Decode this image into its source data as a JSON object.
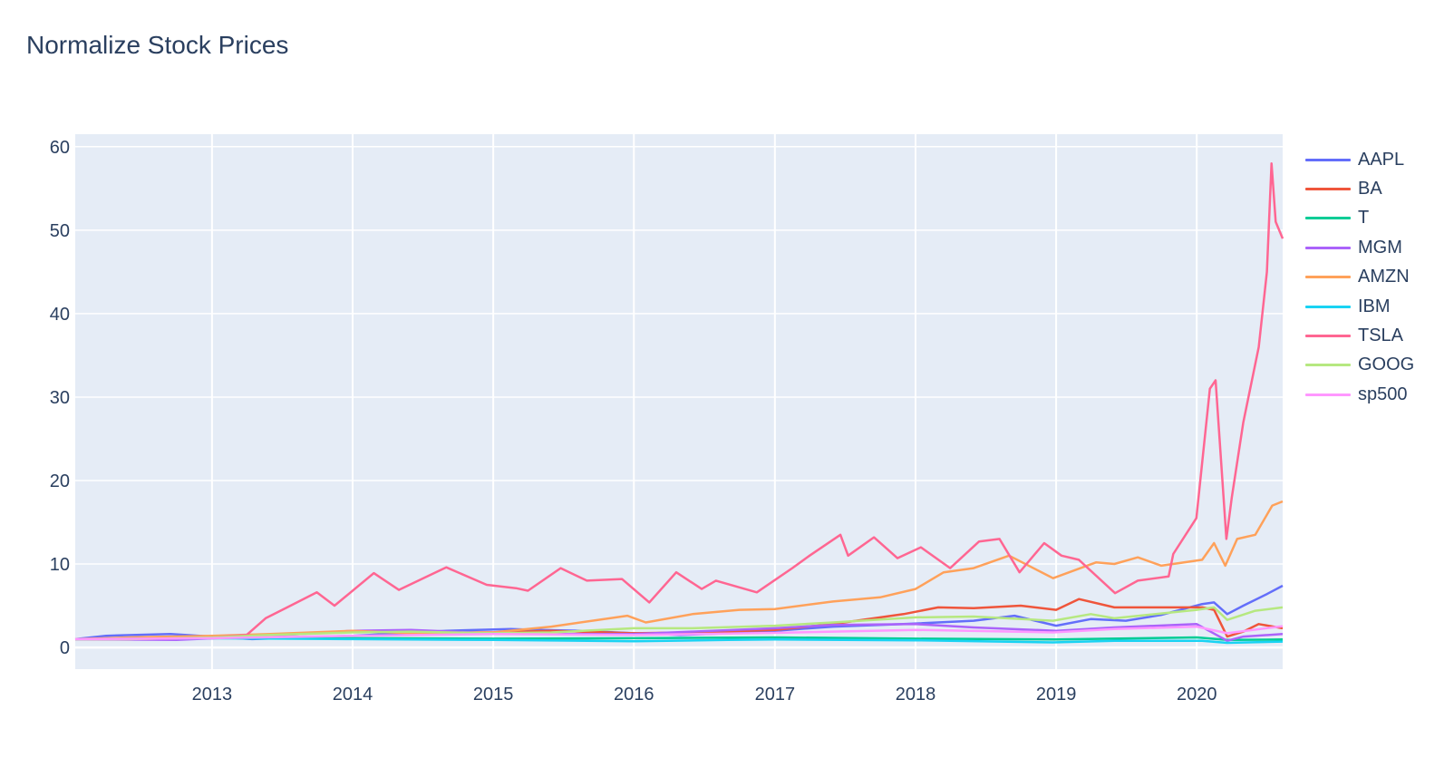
{
  "chart_data": {
    "type": "line",
    "title": "Normalize Stock Prices",
    "xlabel": "",
    "ylabel": "",
    "x_range": [
      "2012-01-12",
      "2020-08-11"
    ],
    "ylim": [
      -2.6,
      61.5
    ],
    "x_ticks": [
      "2013",
      "2014",
      "2015",
      "2016",
      "2017",
      "2018",
      "2019",
      "2020"
    ],
    "y_ticks": [
      0,
      10,
      20,
      30,
      40,
      50,
      60
    ],
    "grid": true,
    "legend_position": "right",
    "series": [
      {
        "name": "AAPL",
        "color": "#636efa",
        "points": [
          [
            "2012-01-12",
            1.0
          ],
          [
            "2012-04-01",
            1.4
          ],
          [
            "2012-09-15",
            1.6
          ],
          [
            "2013-01-01",
            1.3
          ],
          [
            "2013-04-15",
            1.0
          ],
          [
            "2014-01-01",
            1.4
          ],
          [
            "2014-09-01",
            2.0
          ],
          [
            "2015-02-15",
            2.2
          ],
          [
            "2015-05-01",
            2.1
          ],
          [
            "2015-08-15",
            2.0
          ],
          [
            "2016-01-01",
            1.7
          ],
          [
            "2016-05-01",
            1.5
          ],
          [
            "2016-09-01",
            1.7
          ],
          [
            "2017-01-01",
            2.0
          ],
          [
            "2017-06-01",
            2.5
          ],
          [
            "2017-12-01",
            2.8
          ],
          [
            "2018-06-01",
            3.2
          ],
          [
            "2018-09-15",
            3.8
          ],
          [
            "2019-01-01",
            2.6
          ],
          [
            "2019-04-01",
            3.4
          ],
          [
            "2019-07-01",
            3.2
          ],
          [
            "2019-10-01",
            3.9
          ],
          [
            "2020-01-15",
            5.2
          ],
          [
            "2020-02-15",
            5.4
          ],
          [
            "2020-03-20",
            4.0
          ],
          [
            "2020-05-01",
            5.0
          ],
          [
            "2020-07-01",
            6.4
          ],
          [
            "2020-08-11",
            7.4
          ]
        ]
      },
      {
        "name": "BA",
        "color": "#ef553b",
        "points": [
          [
            "2012-01-12",
            1.0
          ],
          [
            "2012-06-01",
            1.0
          ],
          [
            "2013-01-01",
            1.1
          ],
          [
            "2013-06-01",
            1.5
          ],
          [
            "2013-12-01",
            1.9
          ],
          [
            "2014-06-01",
            1.8
          ],
          [
            "2015-01-01",
            1.8
          ],
          [
            "2015-06-01",
            2.0
          ],
          [
            "2016-01-01",
            1.7
          ],
          [
            "2016-06-01",
            1.8
          ],
          [
            "2017-01-01",
            2.1
          ],
          [
            "2017-06-01",
            2.8
          ],
          [
            "2017-12-01",
            4.0
          ],
          [
            "2018-03-01",
            4.8
          ],
          [
            "2018-06-01",
            4.7
          ],
          [
            "2018-10-01",
            5.0
          ],
          [
            "2019-01-01",
            4.5
          ],
          [
            "2019-03-01",
            5.8
          ],
          [
            "2019-06-01",
            4.8
          ],
          [
            "2019-10-01",
            4.8
          ],
          [
            "2020-01-15",
            4.8
          ],
          [
            "2020-02-15",
            4.5
          ],
          [
            "2020-03-20",
            1.3
          ],
          [
            "2020-05-01",
            1.9
          ],
          [
            "2020-06-10",
            2.8
          ],
          [
            "2020-08-11",
            2.3
          ]
        ]
      },
      {
        "name": "T",
        "color": "#00cc96",
        "points": [
          [
            "2012-01-12",
            1.0
          ],
          [
            "2013-01-01",
            1.1
          ],
          [
            "2014-01-01",
            1.1
          ],
          [
            "2015-01-01",
            1.05
          ],
          [
            "2016-01-01",
            1.1
          ],
          [
            "2017-01-01",
            1.2
          ],
          [
            "2018-01-01",
            1.05
          ],
          [
            "2019-01-01",
            0.95
          ],
          [
            "2020-01-01",
            1.2
          ],
          [
            "2020-03-20",
            0.9
          ],
          [
            "2020-08-11",
            0.95
          ]
        ]
      },
      {
        "name": "MGM",
        "color": "#ab63fa",
        "points": [
          [
            "2012-01-12",
            1.0
          ],
          [
            "2012-10-01",
            0.9
          ],
          [
            "2013-06-01",
            1.4
          ],
          [
            "2014-01-01",
            2.0
          ],
          [
            "2014-06-01",
            2.1
          ],
          [
            "2015-01-01",
            1.7
          ],
          [
            "2015-06-01",
            1.6
          ],
          [
            "2016-01-01",
            1.6
          ],
          [
            "2016-06-01",
            1.9
          ],
          [
            "2017-01-01",
            2.3
          ],
          [
            "2017-06-01",
            2.7
          ],
          [
            "2018-01-01",
            2.8
          ],
          [
            "2018-06-01",
            2.4
          ],
          [
            "2019-01-01",
            2.0
          ],
          [
            "2019-06-01",
            2.4
          ],
          [
            "2020-01-01",
            2.8
          ],
          [
            "2020-03-20",
            0.8
          ],
          [
            "2020-05-01",
            1.3
          ],
          [
            "2020-08-11",
            1.6
          ]
        ]
      },
      {
        "name": "AMZN",
        "color": "#ffa15a",
        "points": [
          [
            "2012-01-12",
            1.0
          ],
          [
            "2012-06-01",
            1.2
          ],
          [
            "2013-01-01",
            1.4
          ],
          [
            "2013-06-01",
            1.6
          ],
          [
            "2014-01-01",
            2.0
          ],
          [
            "2014-06-01",
            1.7
          ],
          [
            "2015-01-01",
            1.8
          ],
          [
            "2015-06-01",
            2.5
          ],
          [
            "2015-12-15",
            3.8
          ],
          [
            "2016-02-01",
            3.0
          ],
          [
            "2016-06-01",
            4.0
          ],
          [
            "2016-10-01",
            4.5
          ],
          [
            "2017-01-01",
            4.6
          ],
          [
            "2017-06-01",
            5.5
          ],
          [
            "2017-10-01",
            6.0
          ],
          [
            "2018-01-01",
            7.0
          ],
          [
            "2018-03-15",
            9.0
          ],
          [
            "2018-06-01",
            9.5
          ],
          [
            "2018-09-01",
            11.0
          ],
          [
            "2018-12-24",
            8.3
          ],
          [
            "2019-04-15",
            10.2
          ],
          [
            "2019-06-01",
            10.0
          ],
          [
            "2019-08-01",
            10.8
          ],
          [
            "2019-10-01",
            9.8
          ],
          [
            "2020-01-15",
            10.5
          ],
          [
            "2020-02-15",
            12.5
          ],
          [
            "2020-03-15",
            9.8
          ],
          [
            "2020-04-15",
            13.0
          ],
          [
            "2020-06-01",
            13.5
          ],
          [
            "2020-07-15",
            17.0
          ],
          [
            "2020-08-11",
            17.5
          ]
        ]
      },
      {
        "name": "IBM",
        "color": "#19d3f3",
        "points": [
          [
            "2012-01-12",
            1.0
          ],
          [
            "2013-01-01",
            1.1
          ],
          [
            "2014-01-01",
            1.0
          ],
          [
            "2015-01-01",
            0.9
          ],
          [
            "2016-01-01",
            0.75
          ],
          [
            "2016-09-01",
            0.9
          ],
          [
            "2017-01-01",
            0.95
          ],
          [
            "2018-01-01",
            0.85
          ],
          [
            "2018-12-24",
            0.6
          ],
          [
            "2019-06-01",
            0.8
          ],
          [
            "2020-01-15",
            0.8
          ],
          [
            "2020-03-20",
            0.55
          ],
          [
            "2020-08-11",
            0.7
          ]
        ]
      },
      {
        "name": "TSLA",
        "color": "#ff6692",
        "points": [
          [
            "2012-01-12",
            1.0
          ],
          [
            "2012-06-01",
            1.0
          ],
          [
            "2013-01-01",
            1.2
          ],
          [
            "2013-04-01",
            1.5
          ],
          [
            "2013-05-20",
            3.5
          ],
          [
            "2013-07-15",
            4.8
          ],
          [
            "2013-09-30",
            6.6
          ],
          [
            "2013-11-15",
            5.0
          ],
          [
            "2014-02-25",
            8.9
          ],
          [
            "2014-05-01",
            6.9
          ],
          [
            "2014-09-01",
            9.6
          ],
          [
            "2014-12-15",
            7.5
          ],
          [
            "2015-03-01",
            7.1
          ],
          [
            "2015-04-01",
            6.8
          ],
          [
            "2015-06-25",
            9.5
          ],
          [
            "2015-09-01",
            8.0
          ],
          [
            "2015-12-01",
            8.2
          ],
          [
            "2016-02-10",
            5.4
          ],
          [
            "2016-04-20",
            9.0
          ],
          [
            "2016-06-25",
            7.0
          ],
          [
            "2016-08-01",
            8.0
          ],
          [
            "2016-11-15",
            6.6
          ],
          [
            "2017-02-15",
            9.5
          ],
          [
            "2017-04-01",
            11.0
          ],
          [
            "2017-06-20",
            13.5
          ],
          [
            "2017-07-10",
            11.0
          ],
          [
            "2017-09-15",
            13.2
          ],
          [
            "2017-11-15",
            10.7
          ],
          [
            "2018-01-15",
            12.0
          ],
          [
            "2018-04-01",
            9.5
          ],
          [
            "2018-06-15",
            12.7
          ],
          [
            "2018-08-07",
            13.0
          ],
          [
            "2018-09-28",
            9.0
          ],
          [
            "2018-12-01",
            12.5
          ],
          [
            "2019-01-15",
            11.0
          ],
          [
            "2019-03-01",
            10.5
          ],
          [
            "2019-06-03",
            6.5
          ],
          [
            "2019-08-01",
            8.0
          ],
          [
            "2019-10-20",
            8.5
          ],
          [
            "2019-11-01",
            11.2
          ],
          [
            "2019-12-31",
            15.5
          ],
          [
            "2020-02-04",
            31.0
          ],
          [
            "2020-02-19",
            32.0
          ],
          [
            "2020-03-18",
            13.0
          ],
          [
            "2020-04-01",
            18.0
          ],
          [
            "2020-05-01",
            27.0
          ],
          [
            "2020-06-10",
            36.0
          ],
          [
            "2020-07-01",
            45.0
          ],
          [
            "2020-07-13",
            58.0
          ],
          [
            "2020-07-24",
            51.0
          ],
          [
            "2020-08-11",
            49.0
          ]
        ]
      },
      {
        "name": "GOOG",
        "color": "#b6e880",
        "points": [
          [
            "2012-01-12",
            1.0
          ],
          [
            "2012-06-01",
            1.0
          ],
          [
            "2013-01-01",
            1.2
          ],
          [
            "2013-06-01",
            1.5
          ],
          [
            "2014-01-01",
            1.8
          ],
          [
            "2014-06-01",
            1.9
          ],
          [
            "2015-01-01",
            1.7
          ],
          [
            "2015-06-01",
            1.8
          ],
          [
            "2016-01-01",
            2.3
          ],
          [
            "2016-06-01",
            2.3
          ],
          [
            "2017-01-01",
            2.6
          ],
          [
            "2017-06-01",
            3.0
          ],
          [
            "2018-01-01",
            3.6
          ],
          [
            "2018-06-01",
            3.7
          ],
          [
            "2018-12-24",
            3.2
          ],
          [
            "2019-04-01",
            4.0
          ],
          [
            "2019-06-01",
            3.5
          ],
          [
            "2020-01-01",
            4.5
          ],
          [
            "2020-02-15",
            4.8
          ],
          [
            "2020-03-20",
            3.3
          ],
          [
            "2020-06-01",
            4.4
          ],
          [
            "2020-08-11",
            4.8
          ]
        ]
      },
      {
        "name": "sp500",
        "color": "#ff97ff",
        "points": [
          [
            "2012-01-12",
            1.0
          ],
          [
            "2013-01-01",
            1.1
          ],
          [
            "2014-01-01",
            1.4
          ],
          [
            "2015-01-01",
            1.6
          ],
          [
            "2016-01-01",
            1.5
          ],
          [
            "2017-01-01",
            1.75
          ],
          [
            "2018-01-01",
            2.1
          ],
          [
            "2018-12-24",
            1.8
          ],
          [
            "2019-06-01",
            2.2
          ],
          [
            "2020-01-01",
            2.5
          ],
          [
            "2020-03-20",
            1.7
          ],
          [
            "2020-08-11",
            2.55
          ]
        ]
      }
    ]
  }
}
